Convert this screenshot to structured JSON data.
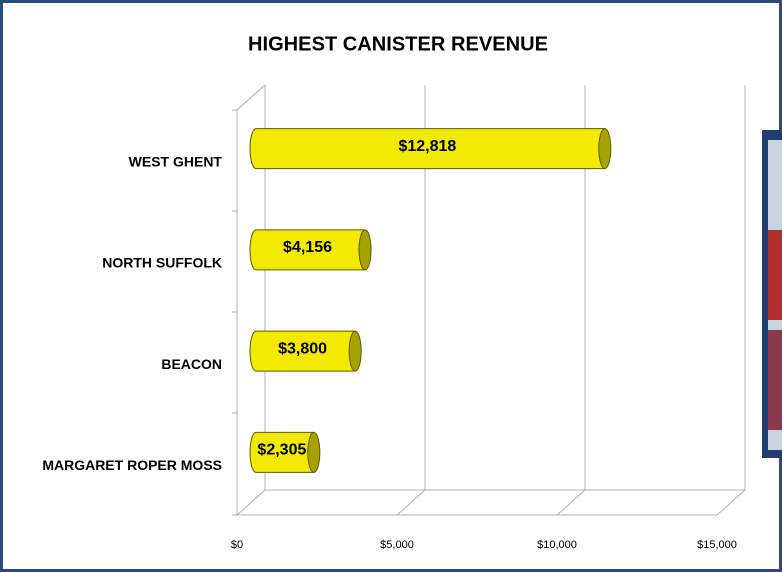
{
  "chart_data": {
    "type": "bar",
    "orientation": "horizontal",
    "title": "HIGHEST CANISTER REVENUE",
    "categories": [
      "WEST GHENT",
      "NORTH SUFFOLK",
      "BEACON",
      "MARGARET ROPER MOSS"
    ],
    "values": [
      12818,
      4156,
      3800,
      2305
    ],
    "value_labels": [
      "$12,818",
      "$4,156",
      "$3,800",
      "$2,305"
    ],
    "color": "#f2ea00",
    "xlim": [
      0,
      15000
    ],
    "xticks": [
      {
        "value": 0,
        "label": "$0"
      },
      {
        "value": 5000,
        "label": "$5,000"
      },
      {
        "value": 10000,
        "label": "$10,000"
      },
      {
        "value": 15000,
        "label": "$15,000"
      }
    ],
    "grid": true
  }
}
